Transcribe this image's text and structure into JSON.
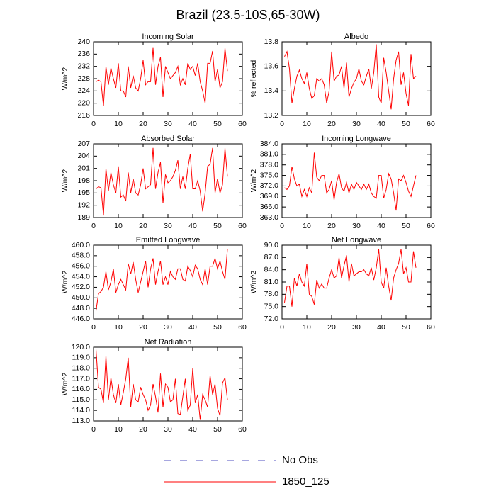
{
  "title": "Brazil (23.5-10S,65-30W)",
  "legend": [
    {
      "label": "No Obs",
      "color": "#4f4fc0",
      "dash": true
    },
    {
      "label": "1850_125",
      "color": "#ff0000",
      "dash": false
    }
  ],
  "chart_data": [
    {
      "type": "line",
      "title": "Incoming Solar",
      "ylabel": "W/m^2",
      "color": "#ff0000",
      "xlim": [
        0,
        60
      ],
      "xticks": [
        0,
        10,
        20,
        30,
        40,
        50,
        60
      ],
      "ylim": [
        216,
        240
      ],
      "yticks": [
        216,
        220,
        224,
        228,
        232,
        236,
        240
      ],
      "x": [
        1,
        2,
        3,
        4,
        5,
        6,
        7,
        8,
        9,
        10,
        11,
        12,
        13,
        14,
        15,
        16,
        17,
        18,
        19,
        20,
        21,
        22,
        23,
        24,
        25,
        26,
        27,
        28,
        29,
        30,
        31,
        32,
        33,
        34,
        35,
        36,
        37,
        38,
        39,
        40,
        41,
        42,
        43,
        44,
        45,
        46,
        47,
        48,
        49,
        50,
        51,
        52,
        53,
        54
      ],
      "values": [
        227,
        227.5,
        227,
        219,
        232,
        226,
        231.5,
        228,
        225,
        233,
        224,
        224,
        222,
        232,
        225,
        229,
        225,
        224,
        228,
        234,
        226,
        227,
        227,
        238,
        226,
        232,
        235,
        222,
        232,
        230,
        228,
        229,
        230,
        232,
        226,
        228,
        226,
        233,
        231,
        232,
        229,
        233,
        227,
        224,
        220,
        233,
        233,
        237,
        227,
        231,
        225,
        227,
        238,
        230.5
      ]
    },
    {
      "type": "line",
      "title": "Albedo",
      "ylabel": "% reflected",
      "color": "#ff0000",
      "xlim": [
        0,
        60
      ],
      "xticks": [
        0,
        10,
        20,
        30,
        40,
        50,
        60
      ],
      "ylim": [
        13.2,
        13.8
      ],
      "yticks": [
        13.2,
        13.4,
        13.6,
        13.8
      ],
      "x": [
        1,
        2,
        3,
        4,
        5,
        6,
        7,
        8,
        9,
        10,
        11,
        12,
        13,
        14,
        15,
        16,
        17,
        18,
        19,
        20,
        21,
        22,
        23,
        24,
        25,
        26,
        27,
        28,
        29,
        30,
        31,
        32,
        33,
        34,
        35,
        36,
        37,
        38,
        39,
        40,
        41,
        42,
        43,
        44,
        45,
        46,
        47,
        48,
        49,
        50,
        51,
        52,
        53,
        54
      ],
      "values": [
        13.68,
        13.72,
        13.58,
        13.3,
        13.42,
        13.52,
        13.57,
        13.5,
        13.46,
        13.55,
        13.42,
        13.34,
        13.36,
        13.5,
        13.48,
        13.5,
        13.45,
        13.3,
        13.4,
        13.72,
        13.48,
        13.52,
        13.53,
        13.6,
        13.42,
        13.63,
        13.35,
        13.42,
        13.47,
        13.5,
        13.58,
        13.48,
        13.45,
        13.52,
        13.58,
        13.42,
        13.55,
        13.78,
        13.35,
        13.3,
        13.67,
        13.55,
        13.4,
        13.25,
        13.5,
        13.65,
        13.72,
        13.45,
        13.55,
        13.38,
        13.28,
        13.7,
        13.5,
        13.52
      ]
    },
    {
      "type": "line",
      "title": "Absorbed Solar",
      "ylabel": "W/m^2",
      "color": "#ff0000",
      "xlim": [
        0,
        60
      ],
      "xticks": [
        0,
        10,
        20,
        30,
        40,
        50,
        60
      ],
      "ylim": [
        189,
        207
      ],
      "yticks": [
        189,
        192,
        195,
        198,
        201,
        204,
        207
      ],
      "x": [
        1,
        2,
        3,
        4,
        5,
        6,
        7,
        8,
        9,
        10,
        11,
        12,
        13,
        14,
        15,
        16,
        17,
        18,
        19,
        20,
        21,
        22,
        23,
        24,
        25,
        26,
        27,
        28,
        29,
        30,
        31,
        32,
        33,
        34,
        35,
        36,
        37,
        38,
        39,
        40,
        41,
        42,
        43,
        44,
        45,
        46,
        47,
        48,
        49,
        50,
        51,
        52,
        53,
        54
      ],
      "values": [
        196,
        196.5,
        196.3,
        189.5,
        201,
        195.5,
        200,
        197,
        195,
        201.5,
        194,
        194.5,
        193,
        200,
        195,
        198.5,
        195,
        194.5,
        197,
        201,
        196,
        196.5,
        197,
        206,
        196,
        200,
        202.5,
        192.5,
        199.5,
        197.5,
        198,
        199,
        200.5,
        203,
        196,
        199,
        196,
        201,
        204.5,
        196,
        196,
        198,
        195.5,
        190.5,
        195,
        201.5,
        202,
        206,
        195,
        198.5,
        195,
        197,
        206,
        199
      ]
    },
    {
      "type": "line",
      "title": "Incoming Longwave",
      "ylabel": "W/m^2",
      "color": "#ff0000",
      "xlim": [
        0,
        60
      ],
      "xticks": [
        0,
        10,
        20,
        30,
        40,
        50,
        60
      ],
      "ylim": [
        363,
        384
      ],
      "yticks": [
        {
          "value": 363,
          "label": "363.0"
        },
        {
          "value": 366,
          "label": "366.0"
        },
        {
          "value": 369,
          "label": "369.0"
        },
        {
          "value": 372,
          "label": "372.0"
        },
        {
          "value": 375,
          "label": "375.0"
        },
        {
          "value": 378,
          "label": "378.0"
        },
        {
          "value": 381,
          "label": "381.0"
        },
        {
          "value": 384,
          "label": "384.0"
        }
      ],
      "x": [
        1,
        2,
        3,
        4,
        5,
        6,
        7,
        8,
        9,
        10,
        11,
        12,
        13,
        14,
        15,
        16,
        17,
        18,
        19,
        20,
        21,
        22,
        23,
        24,
        25,
        26,
        27,
        28,
        29,
        30,
        31,
        32,
        33,
        34,
        35,
        36,
        37,
        38,
        39,
        40,
        41,
        42,
        43,
        44,
        45,
        46,
        47,
        48,
        49,
        50,
        51,
        52,
        53,
        54
      ],
      "values": [
        371.5,
        371,
        372,
        377.5,
        374,
        372,
        372.5,
        369,
        371,
        369,
        371.5,
        370,
        381.5,
        374.5,
        373.5,
        375,
        375,
        370,
        371,
        373.5,
        368,
        373,
        375.5,
        371.5,
        370.5,
        373,
        370,
        372.5,
        371,
        373,
        372,
        371,
        372.5,
        371,
        372.5,
        370,
        369,
        368.5,
        375,
        375,
        368.5,
        371,
        375.5,
        374,
        370,
        365,
        374,
        373.5,
        375,
        373,
        370.5,
        369,
        372,
        375
      ]
    },
    {
      "type": "line",
      "title": "Emitted Longwave",
      "ylabel": "W/m^2",
      "color": "#ff0000",
      "xlim": [
        0,
        60
      ],
      "xticks": [
        0,
        10,
        20,
        30,
        40,
        50,
        60
      ],
      "ylim": [
        446,
        460
      ],
      "yticks": [
        {
          "value": 446,
          "label": "446.0"
        },
        {
          "value": 448,
          "label": "448.0"
        },
        {
          "value": 450,
          "label": "450.0"
        },
        {
          "value": 452,
          "label": "452.0"
        },
        {
          "value": 454,
          "label": "454.0"
        },
        {
          "value": 456,
          "label": "456.0"
        },
        {
          "value": 458,
          "label": "458.0"
        },
        {
          "value": 460,
          "label": "460.0"
        }
      ],
      "x": [
        1,
        2,
        3,
        4,
        5,
        6,
        7,
        8,
        9,
        10,
        11,
        12,
        13,
        14,
        15,
        16,
        17,
        18,
        19,
        20,
        21,
        22,
        23,
        24,
        25,
        26,
        27,
        28,
        29,
        30,
        31,
        32,
        33,
        34,
        35,
        36,
        37,
        38,
        39,
        40,
        41,
        42,
        43,
        44,
        45,
        46,
        47,
        48,
        49,
        50,
        51,
        52,
        53,
        54
      ],
      "values": [
        447.5,
        450.8,
        451.2,
        452,
        455,
        451.5,
        453,
        455.5,
        451,
        452.5,
        453.5,
        452.5,
        451.5,
        456.5,
        454.5,
        456.8,
        453.5,
        451,
        453,
        455,
        457,
        452,
        455.5,
        457.5,
        452.5,
        455,
        457,
        452.5,
        454,
        452.5,
        455,
        454,
        453.5,
        455.5,
        455.5,
        453.5,
        453.2,
        456,
        455.2,
        454,
        456.2,
        455.5,
        453.5,
        452.5,
        455.5,
        452.5,
        456,
        456,
        457.5,
        455.5,
        457,
        455,
        453.5,
        459.3
      ]
    },
    {
      "type": "line",
      "title": "Net Longwave",
      "ylabel": "W/m^2",
      "color": "#ff0000",
      "xlim": [
        0,
        60
      ],
      "xticks": [
        0,
        10,
        20,
        30,
        40,
        50,
        60
      ],
      "ylim": [
        72,
        90
      ],
      "yticks": [
        {
          "value": 72,
          "label": "72.0"
        },
        {
          "value": 75,
          "label": "75.0"
        },
        {
          "value": 78,
          "label": "78.0"
        },
        {
          "value": 81,
          "label": "81.0"
        },
        {
          "value": 84,
          "label": "84.0"
        },
        {
          "value": 87,
          "label": "87.0"
        },
        {
          "value": 90,
          "label": "90.0"
        }
      ],
      "x": [
        1,
        2,
        3,
        4,
        5,
        6,
        7,
        8,
        9,
        10,
        11,
        12,
        13,
        14,
        15,
        16,
        17,
        18,
        19,
        20,
        21,
        22,
        23,
        24,
        25,
        26,
        27,
        28,
        29,
        30,
        31,
        32,
        33,
        34,
        35,
        36,
        37,
        38,
        39,
        40,
        41,
        42,
        43,
        44,
        45,
        46,
        47,
        48,
        49,
        50,
        51,
        52,
        53,
        54
      ],
      "values": [
        76,
        80,
        80,
        75,
        82,
        80,
        83,
        81,
        80,
        85.5,
        78,
        77.5,
        75.5,
        81.5,
        79.5,
        80.5,
        79.5,
        79.5,
        82,
        84,
        82,
        82.5,
        87,
        82,
        85,
        87.5,
        81,
        85.5,
        82.5,
        83,
        83.5,
        83.5,
        84,
        83,
        82.5,
        84.5,
        81.5,
        84.5,
        89,
        81,
        79.5,
        84.5,
        80,
        76.5,
        82,
        84,
        85.5,
        89,
        83,
        84.5,
        81,
        81,
        88.5,
        84.5
      ]
    },
    {
      "type": "line",
      "title": "Net Radiation",
      "ylabel": "W/m^2",
      "color": "#ff0000",
      "xlim": [
        0,
        60
      ],
      "xticks": [
        0,
        10,
        20,
        30,
        40,
        50,
        60
      ],
      "ylim": [
        113,
        120
      ],
      "yticks": [
        {
          "value": 113,
          "label": "113.0"
        },
        {
          "value": 114,
          "label": "114.0"
        },
        {
          "value": 115,
          "label": "115.0"
        },
        {
          "value": 116,
          "label": "116.0"
        },
        {
          "value": 117,
          "label": "117.0"
        },
        {
          "value": 118,
          "label": "118.0"
        },
        {
          "value": 119,
          "label": "119.0"
        },
        {
          "value": 120,
          "label": "120.0"
        }
      ],
      "x": [
        1,
        2,
        3,
        4,
        5,
        6,
        7,
        8,
        9,
        10,
        11,
        12,
        13,
        14,
        15,
        16,
        17,
        18,
        19,
        20,
        21,
        22,
        23,
        24,
        25,
        26,
        27,
        28,
        29,
        30,
        31,
        32,
        33,
        34,
        35,
        36,
        37,
        38,
        39,
        40,
        41,
        42,
        43,
        44,
        45,
        46,
        47,
        48,
        49,
        50,
        51,
        52,
        53,
        54
      ],
      "values": [
        119.8,
        116.2,
        116,
        114.7,
        119.2,
        115,
        117.1,
        115.5,
        114.7,
        116.5,
        114.5,
        115.7,
        117,
        119,
        114.3,
        116.5,
        115,
        114.8,
        116.2,
        115.5,
        115,
        114,
        114.5,
        116.5,
        115.3,
        113.8,
        117.5,
        114.3,
        116.5,
        116.2,
        114.8,
        115,
        117,
        113.7,
        113.6,
        115.3,
        117,
        114,
        114.5,
        118,
        114.7,
        115.5,
        113.1,
        115.5,
        115,
        114.3,
        117.3,
        115.5,
        116.5,
        114.2,
        113.5,
        116.6,
        117.1,
        115
      ]
    }
  ]
}
